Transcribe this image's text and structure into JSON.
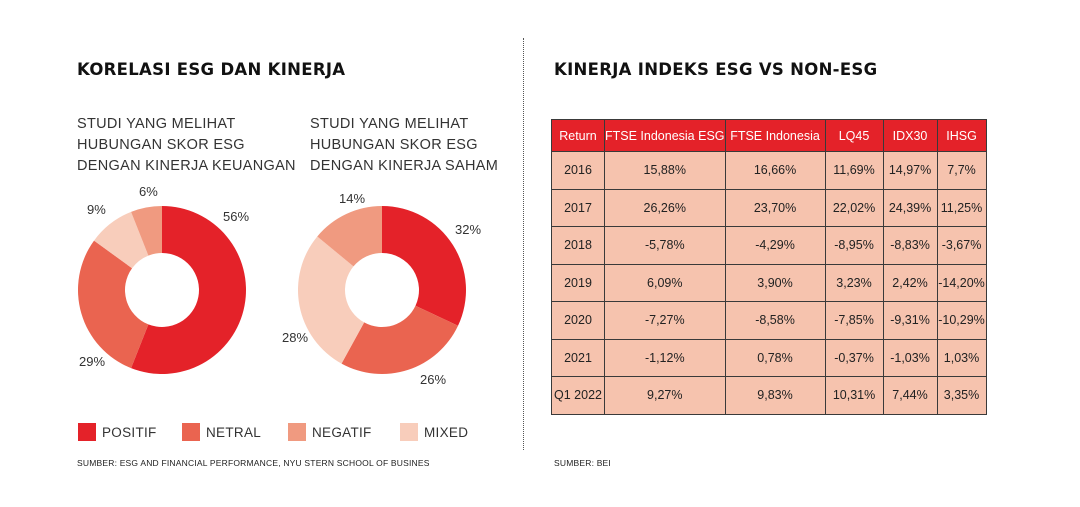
{
  "left": {
    "title": "KORELASI ESG DAN KINERJA",
    "charts_meta": [
      {
        "subtitle_lines": [
          "STUDI YANG MELIHAT",
          "HUBUNGAN SKOR ESG",
          "DENGAN KINERJA KEUANGAN"
        ]
      },
      {
        "subtitle_lines": [
          "STUDI YANG MELIHAT",
          "HUBUNGAN SKOR ESG",
          "DENGAN KINERJA SAHAM"
        ]
      }
    ],
    "legend": [
      {
        "label": "POSITIF",
        "color": "#e42229"
      },
      {
        "label": "NETRAL",
        "color": "#ea6450"
      },
      {
        "label": "NEGATIF",
        "color": "#f09a80"
      },
      {
        "label": "MIXED",
        "color": "#f8cdbb"
      }
    ],
    "source": "SUMBER: ESG AND FINANCIAL PERFORMANCE, NYU STERN SCHOOL OF BUSINES"
  },
  "chart_data": [
    {
      "type": "pie",
      "title": "STUDI YANG MELIHAT HUBUNGAN SKOR ESG DENGAN KINERJA KEUANGAN",
      "categories": [
        "POSITIF",
        "NETRAL",
        "MIXED",
        "NEGATIF"
      ],
      "values": [
        56,
        29,
        9,
        6
      ],
      "labels": [
        "56%",
        "29%",
        "9%",
        "6%"
      ],
      "colors": [
        "#e42229",
        "#ea6450",
        "#f8cdbb",
        "#f09a80"
      ]
    },
    {
      "type": "pie",
      "title": "STUDI YANG MELIHAT HUBUNGAN SKOR ESG DENGAN KINERJA SAHAM",
      "categories": [
        "POSITIF",
        "NETRAL",
        "MIXED",
        "NEGATIF"
      ],
      "values": [
        32,
        26,
        28,
        14
      ],
      "labels": [
        "32%",
        "26%",
        "28%",
        "14%"
      ],
      "colors": [
        "#e42229",
        "#ea6450",
        "#f8cdbb",
        "#f09a80"
      ]
    },
    {
      "type": "table",
      "title": "KINERJA INDEKS ESG VS NON-ESG",
      "columns": [
        "Return",
        "FTSE Indonesia ESG",
        "FTSE Indonesia",
        "LQ45",
        "IDX30",
        "IHSG"
      ],
      "rows": [
        [
          "2016",
          "15,88%",
          "16,66%",
          "11,69%",
          "14,97%",
          "7,7%"
        ],
        [
          "2017",
          "26,26%",
          "23,70%",
          "22,02%",
          "24,39%",
          "11,25%"
        ],
        [
          "2018",
          "-5,78%",
          "-4,29%",
          "-8,95%",
          "-8,83%",
          "-3,67%"
        ],
        [
          "2019",
          "6,09%",
          "3,90%",
          "3,23%",
          "2,42%",
          "-14,20%"
        ],
        [
          "2020",
          "-7,27%",
          "-8,58%",
          "-7,85%",
          "-9,31%",
          "-10,29%"
        ],
        [
          "2021",
          "-1,12%",
          "0,78%",
          "-0,37%",
          "-1,03%",
          "1,03%"
        ],
        [
          "Q1 2022",
          "9,27%",
          "9,83%",
          "10,31%",
          "7,44%",
          "3,35%"
        ]
      ],
      "header_color": "#e42229",
      "cell_color": "#f6c3ae"
    }
  ],
  "right": {
    "source": "SUMBER: BEI"
  }
}
